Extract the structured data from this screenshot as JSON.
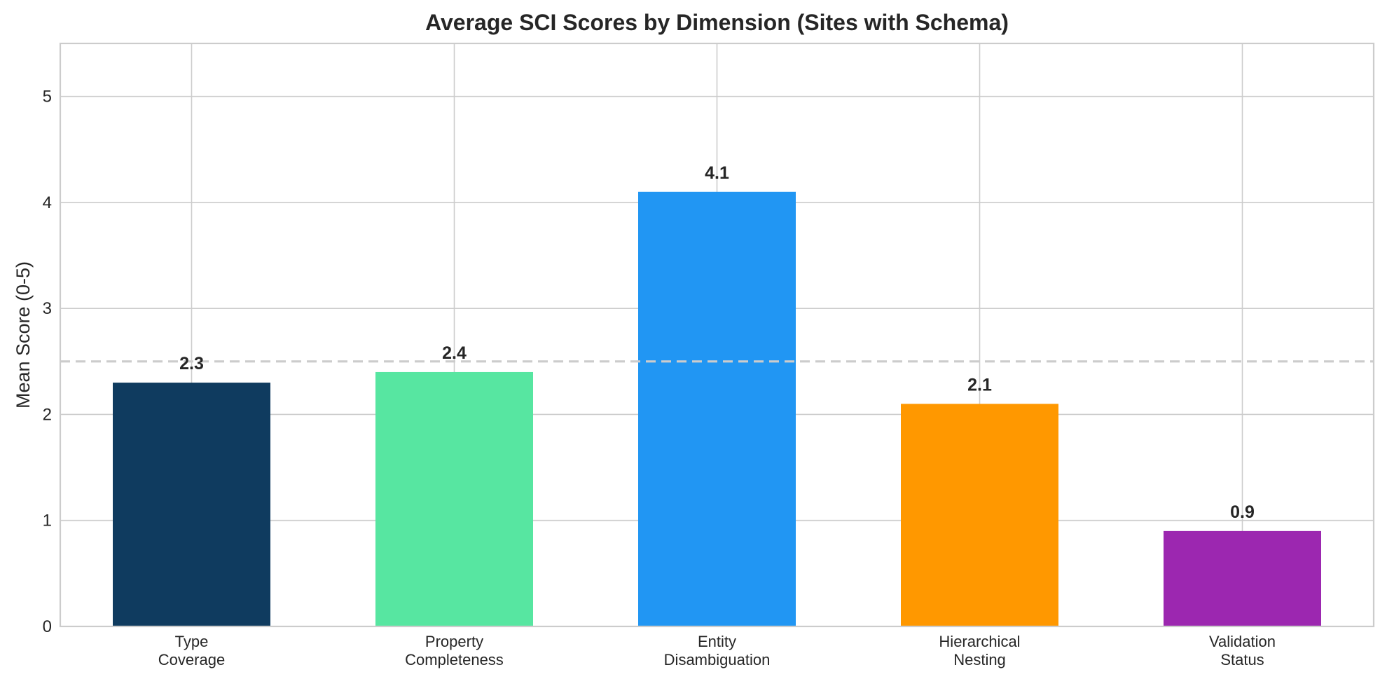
{
  "chart_data": {
    "type": "bar",
    "title": "Average SCI Scores by Dimension (Sites with Schema)",
    "ylabel": "Mean Score (0-5)",
    "xlabel": "",
    "ylim": [
      0,
      5.5
    ],
    "yticks": [
      0,
      1,
      2,
      3,
      4,
      5
    ],
    "grid": true,
    "reference_line": 2.5,
    "categories": [
      [
        "Type",
        "Coverage"
      ],
      [
        "Property",
        "Completeness"
      ],
      [
        "Entity",
        "Disambiguation"
      ],
      [
        "Hierarchical",
        "Nesting"
      ],
      [
        "Validation",
        "Status"
      ]
    ],
    "values": [
      2.3,
      2.4,
      4.1,
      2.1,
      0.9
    ],
    "value_labels": [
      "2.3",
      "2.4",
      "4.1",
      "2.1",
      "0.9"
    ],
    "colors": [
      "#0f3b5f",
      "#57e6a1",
      "#2196f3",
      "#ff9800",
      "#9c27b0"
    ]
  }
}
